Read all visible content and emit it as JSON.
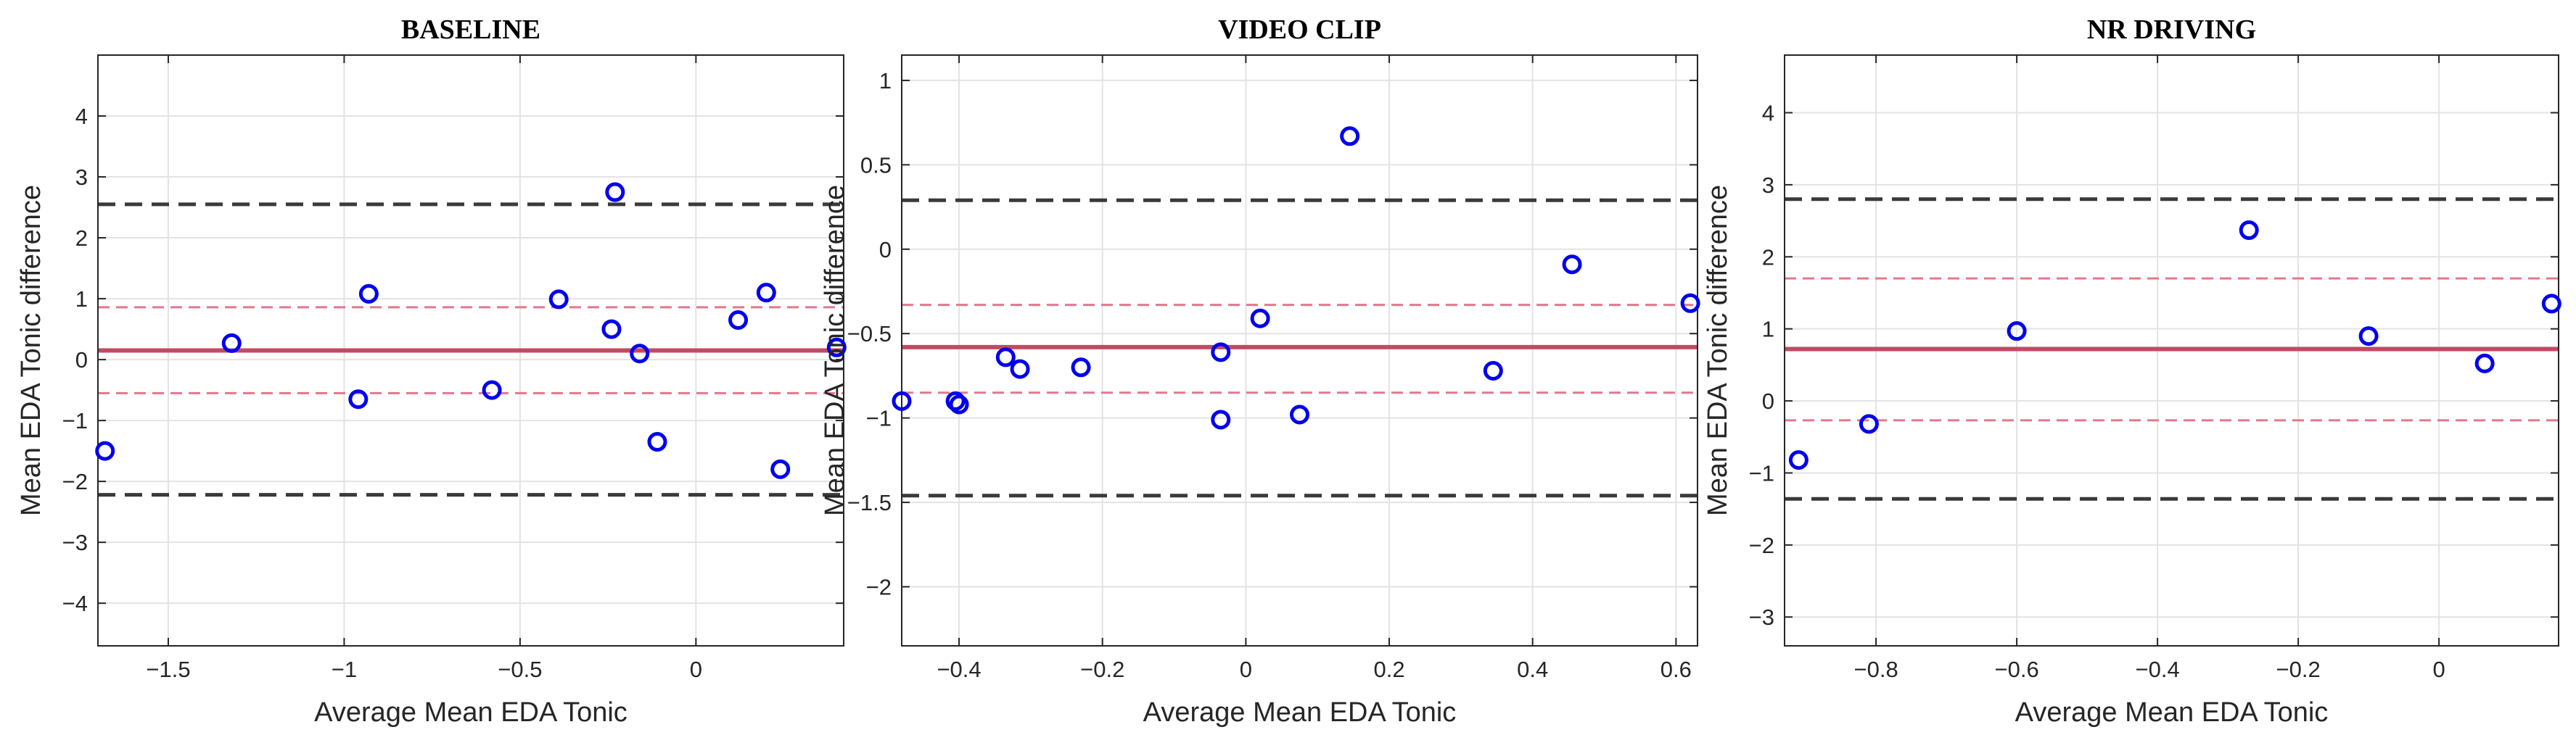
{
  "chart_data": [
    {
      "type": "scatter",
      "title": "BASELINE",
      "xlabel": "Average Mean EDA Tonic",
      "ylabel": "Mean EDA Tonic difference",
      "xlim": [
        -1.7,
        0.42
      ],
      "ylim": [
        -4.7,
        5.0
      ],
      "xticks": [
        -1.5,
        -1,
        -0.5,
        0
      ],
      "xtick_labels": [
        "−1.5",
        "−1",
        "−0.5",
        "0"
      ],
      "yticks": [
        -4,
        -3,
        -2,
        -1,
        0,
        1,
        2,
        3,
        4
      ],
      "ytick_labels": [
        "−4",
        "−3",
        "−2",
        "−1",
        "0",
        "1",
        "2",
        "3",
        "4"
      ],
      "grid": true,
      "mean_line": 0.15,
      "ci_lines": [
        0.86,
        -0.55
      ],
      "loa_lines": [
        2.55,
        -2.22
      ],
      "points": [
        {
          "x": -1.68,
          "y": -1.5
        },
        {
          "x": -1.32,
          "y": 0.27
        },
        {
          "x": -0.96,
          "y": -0.65
        },
        {
          "x": -0.93,
          "y": 1.08
        },
        {
          "x": -0.58,
          "y": -0.5
        },
        {
          "x": -0.39,
          "y": 0.99
        },
        {
          "x": -0.24,
          "y": 0.5
        },
        {
          "x": -0.23,
          "y": 2.75
        },
        {
          "x": -0.16,
          "y": 0.1
        },
        {
          "x": -0.11,
          "y": -1.35
        },
        {
          "x": 0.12,
          "y": 0.65
        },
        {
          "x": 0.2,
          "y": 1.1
        },
        {
          "x": 0.24,
          "y": -1.8
        },
        {
          "x": 0.4,
          "y": 0.2
        }
      ]
    },
    {
      "type": "scatter",
      "title": "VIDEO CLIP",
      "xlabel": "Average Mean EDA Tonic",
      "ylabel": "Mean EDA Tonic difference",
      "xlim": [
        -0.48,
        0.63
      ],
      "ylim": [
        -2.35,
        1.15
      ],
      "xticks": [
        -0.4,
        -0.2,
        0,
        0.2,
        0.4,
        0.6
      ],
      "xtick_labels": [
        "−0.4",
        "−0.2",
        "0",
        "0.2",
        "0.4",
        "0.6"
      ],
      "yticks": [
        -2,
        -1.5,
        -1,
        -0.5,
        0,
        0.5,
        1
      ],
      "ytick_labels": [
        "−2",
        "−1.5",
        "−1",
        "−0.5",
        "0",
        "0.5",
        "1"
      ],
      "grid": true,
      "mean_line": -0.58,
      "ci_lines": [
        -0.33,
        -0.85
      ],
      "loa_lines": [
        0.29,
        -1.46
      ],
      "points": [
        {
          "x": -0.48,
          "y": -0.9
        },
        {
          "x": -0.405,
          "y": -0.9
        },
        {
          "x": -0.4,
          "y": -0.92
        },
        {
          "x": -0.335,
          "y": -0.64
        },
        {
          "x": -0.315,
          "y": -0.71
        },
        {
          "x": -0.23,
          "y": -0.7
        },
        {
          "x": -0.035,
          "y": -0.61
        },
        {
          "x": -0.035,
          "y": -1.01
        },
        {
          "x": 0.02,
          "y": -0.41
        },
        {
          "x": 0.075,
          "y": -0.98
        },
        {
          "x": 0.145,
          "y": 0.67
        },
        {
          "x": 0.345,
          "y": -0.72
        },
        {
          "x": 0.455,
          "y": -0.09
        },
        {
          "x": 0.62,
          "y": -0.32
        }
      ]
    },
    {
      "type": "scatter",
      "title": "NR DRIVING",
      "xlabel": "Average Mean EDA Tonic",
      "ylabel": "Mean EDA Tonic difference",
      "xlim": [
        -0.93,
        0.17
      ],
      "ylim": [
        -3.4,
        4.8
      ],
      "xticks": [
        -0.8,
        -0.6,
        -0.4,
        -0.2,
        0
      ],
      "xtick_labels": [
        "−0.8",
        "−0.6",
        "−0.4",
        "−0.2",
        "0"
      ],
      "yticks": [
        -3,
        -2,
        -1,
        0,
        1,
        2,
        3,
        4
      ],
      "ytick_labels": [
        "−3",
        "−2",
        "−1",
        "0",
        "1",
        "2",
        "3",
        "4"
      ],
      "grid": true,
      "mean_line": 0.72,
      "ci_lines": [
        1.7,
        -0.27
      ],
      "loa_lines": [
        2.8,
        -1.36
      ],
      "points": [
        {
          "x": -0.91,
          "y": -0.82
        },
        {
          "x": -0.81,
          "y": -0.32
        },
        {
          "x": -0.6,
          "y": 0.97
        },
        {
          "x": -0.27,
          "y": 2.37
        },
        {
          "x": -0.1,
          "y": 0.9
        },
        {
          "x": 0.065,
          "y": 0.52
        },
        {
          "x": 0.16,
          "y": 1.35
        }
      ]
    }
  ]
}
